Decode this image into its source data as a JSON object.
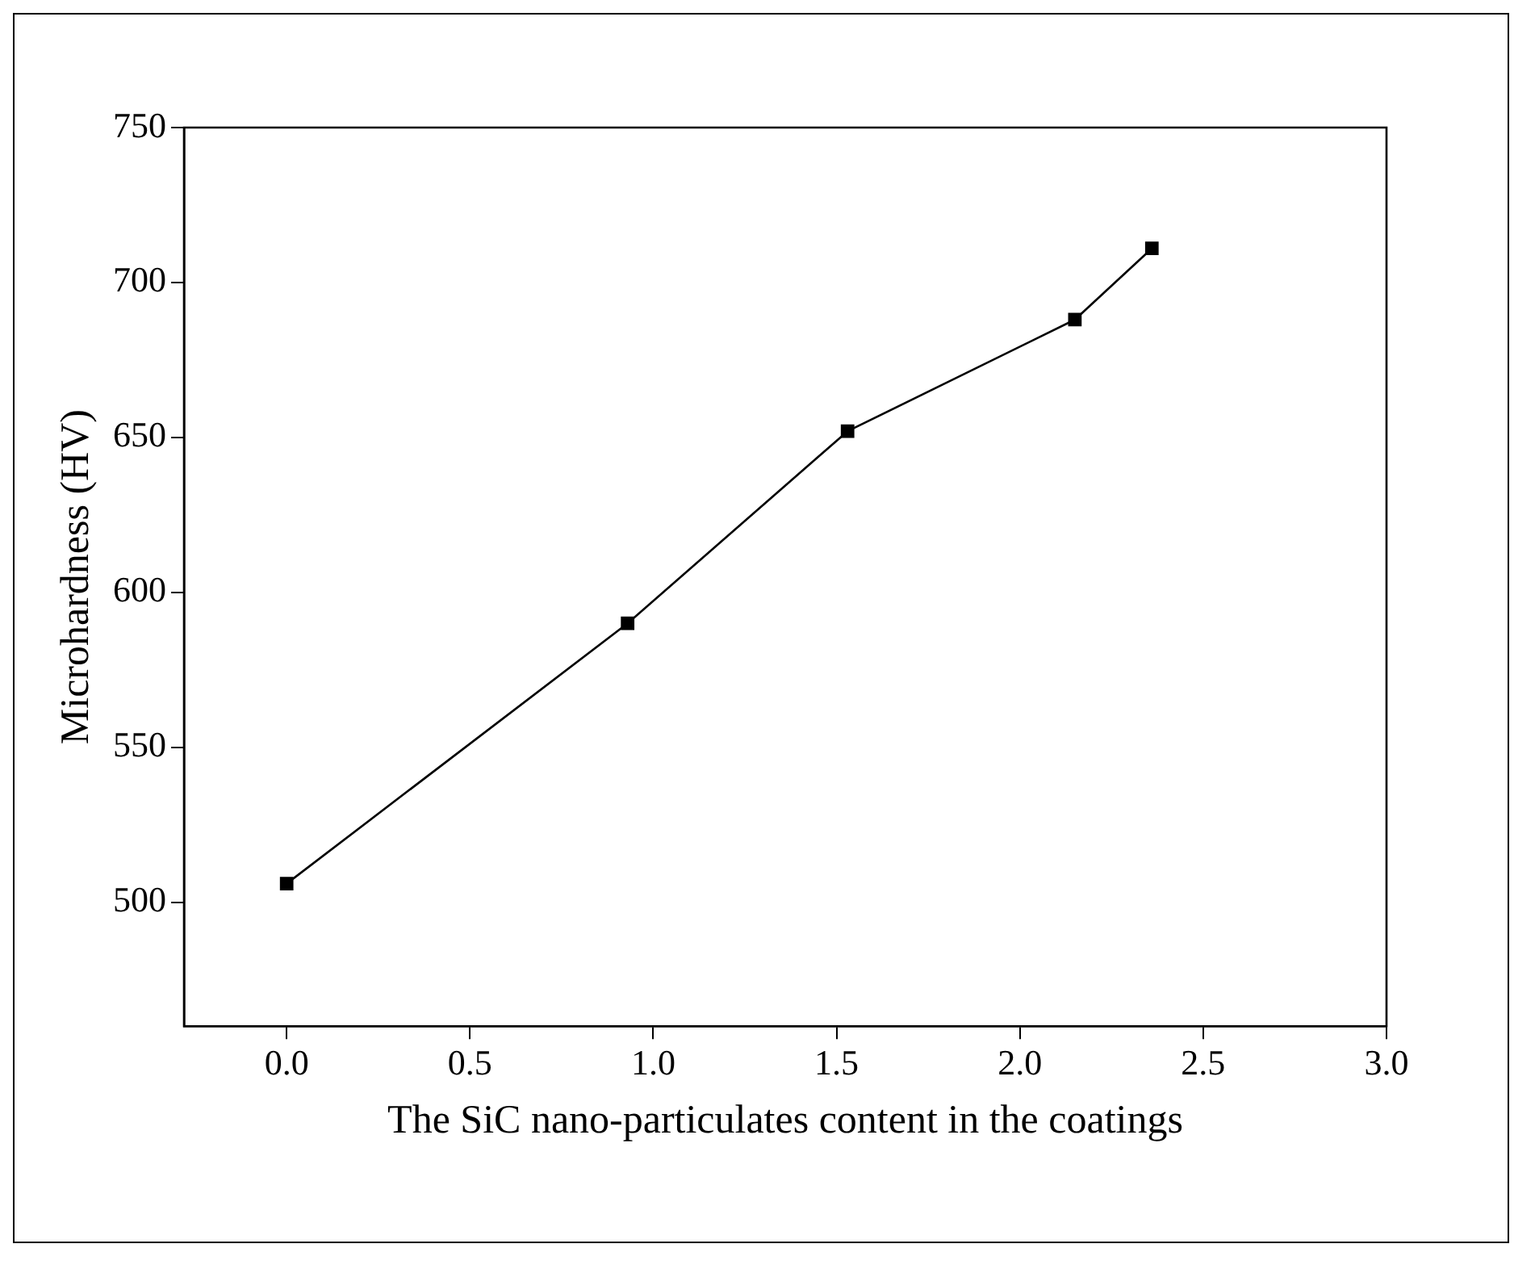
{
  "chart_data": {
    "type": "line",
    "xlabel": "The SiC nano-particulates content in the coatings",
    "ylabel": "Microhardness (HV)",
    "x": [
      0,
      0.93,
      1.53,
      2.15,
      2.36
    ],
    "series": [
      {
        "color": "#000000",
        "values": [
          506,
          590,
          652,
          688,
          711
        ]
      }
    ],
    "xlim": [
      -0.28,
      3.0
    ],
    "xticks": [
      {
        "value": 0,
        "label": "0.0"
      },
      {
        "value": 0.5,
        "label": "0.5"
      },
      {
        "value": 1,
        "label": "1.0"
      },
      {
        "value": 1.5,
        "label": "1.5"
      },
      {
        "value": 2,
        "label": "2.0"
      },
      {
        "value": 2.5,
        "label": "2.5"
      },
      {
        "value": 3,
        "label": "3.0"
      }
    ],
    "ylim": [
      460,
      750
    ],
    "yticks": [
      500,
      550,
      600,
      650,
      700,
      750
    ],
    "grid": false,
    "legend": false,
    "marker": "square",
    "line_style": "solid"
  }
}
